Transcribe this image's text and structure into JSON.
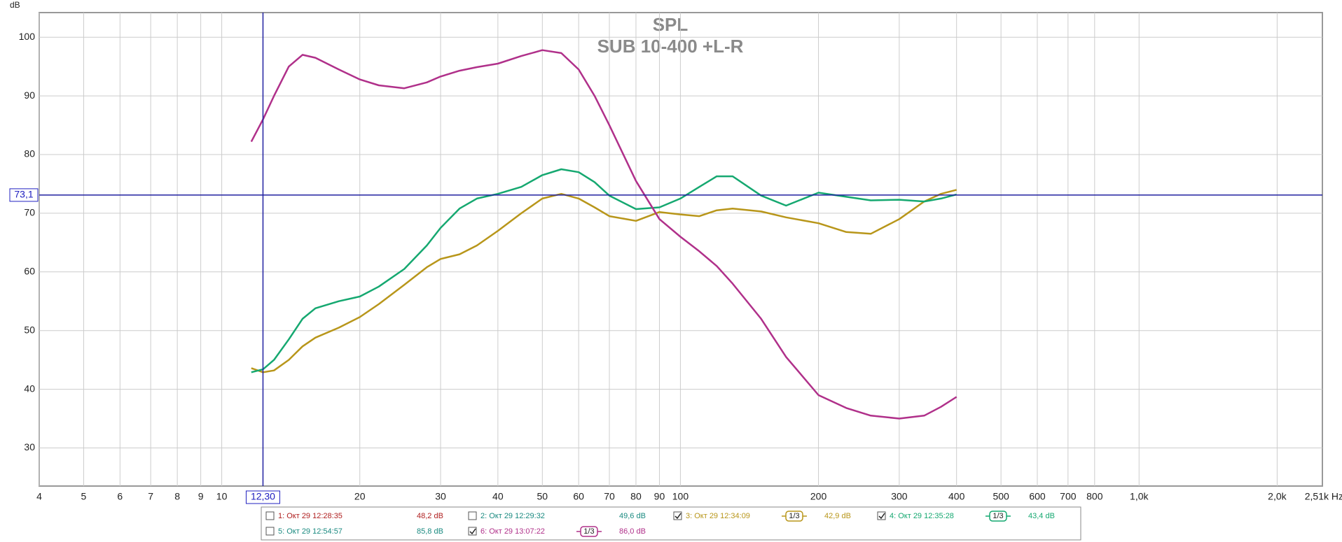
{
  "chart_data": {
    "type": "line",
    "title": "SPL",
    "subtitle": "SUB 10-400 +L-R",
    "y_label": "dB",
    "log_x": true,
    "grid": true,
    "xlim": [
      4,
      2510
    ],
    "ylim": [
      23.5,
      104.2
    ],
    "yticks": [
      30,
      40,
      50,
      60,
      70,
      80,
      90,
      100
    ],
    "xticks": [
      4,
      5,
      6,
      7,
      8,
      9,
      10,
      20,
      30,
      40,
      50,
      60,
      70,
      80,
      90,
      100,
      200,
      300,
      400,
      500,
      600,
      700,
      800,
      {
        "value": 1000,
        "label": "1,0k"
      },
      {
        "value": 2000,
        "label": "2,0k"
      },
      {
        "value": 2510,
        "label": "2,51k Hz"
      }
    ],
    "cursor": {
      "x": {
        "value": 12.3,
        "label": "12,30"
      },
      "y": {
        "value": 73.1,
        "label": "73,1"
      }
    },
    "x": [
      11.6,
      12.3,
      13,
      14,
      15,
      16,
      18,
      20,
      22,
      25,
      28,
      30,
      33,
      36,
      40,
      45,
      50,
      55,
      60,
      65,
      70,
      80,
      90,
      100,
      110,
      120,
      130,
      150,
      170,
      200,
      230,
      260,
      300,
      340,
      370,
      400
    ],
    "series": [
      {
        "name": "1: Окт 29 12:28:35",
        "color": "#b02020",
        "checked": false,
        "reading": "48,2 dB"
      },
      {
        "name": "2: Окт 29 12:29:32",
        "color": "#1a8a80",
        "checked": false,
        "reading": "49,6 dB"
      },
      {
        "name": "3: Окт 29 12:34:09",
        "color": "#b8961a",
        "checked": true,
        "smoothing": "1/3",
        "reading": "42,9 dB",
        "values": [
          43.6,
          42.9,
          43.2,
          45,
          47.3,
          48.8,
          50.5,
          52.3,
          54.5,
          57.8,
          60.8,
          62.2,
          63,
          64.5,
          67,
          70,
          72.5,
          73.3,
          72.5,
          71,
          69.5,
          68.7,
          70.2,
          69.8,
          69.5,
          70.5,
          70.8,
          70.3,
          69.3,
          68.3,
          66.8,
          66.5,
          69,
          72,
          73.3,
          74
        ]
      },
      {
        "name": "4: Окт 29 12:35:28",
        "color": "#15a870",
        "checked": true,
        "smoothing": "1/3",
        "reading": "43,4 dB",
        "values": [
          42.9,
          43.4,
          45,
          48.5,
          52,
          53.8,
          55,
          55.8,
          57.5,
          60.5,
          64.5,
          67.5,
          70.8,
          72.5,
          73.3,
          74.5,
          76.5,
          77.5,
          77,
          75.3,
          73,
          70.7,
          71,
          72.5,
          74.5,
          76.3,
          76.3,
          73,
          71.3,
          73.5,
          72.8,
          72.2,
          72.3,
          72,
          72.5,
          73.2
        ]
      },
      {
        "name": "5: Окт 29 12:54:57",
        "color": "#1a8a80",
        "checked": false,
        "reading": "85,8 dB"
      },
      {
        "name": "6: Окт 29 13:07:22",
        "color": "#b0308a",
        "checked": true,
        "smoothing": "1/3",
        "reading": "86,0 dB",
        "values": [
          82.2,
          86,
          90,
          95,
          97,
          96.5,
          94.5,
          92.8,
          91.8,
          91.3,
          92.3,
          93.3,
          94.3,
          94.9,
          95.5,
          96.8,
          97.8,
          97.3,
          94.5,
          90,
          85,
          75.5,
          69,
          66,
          63.5,
          61,
          58,
          52,
          45.5,
          39,
          36.8,
          35.5,
          35,
          35.5,
          37,
          38.7
        ]
      }
    ]
  }
}
